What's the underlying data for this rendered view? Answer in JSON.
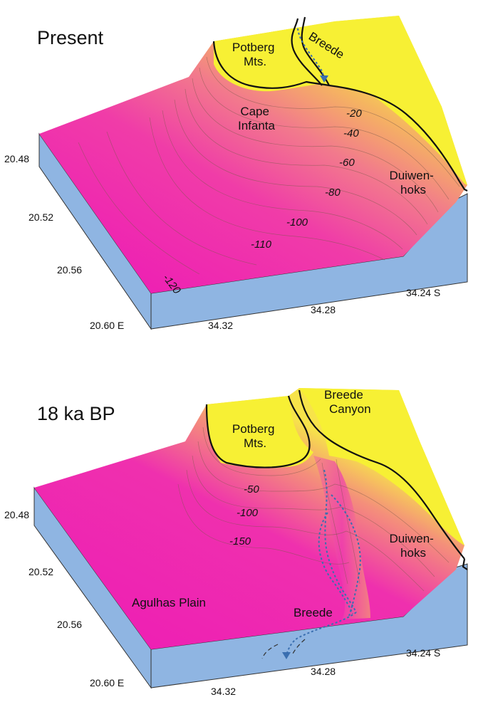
{
  "colors": {
    "land": "#f7f034",
    "deep": "#ee1fb4",
    "mid": "#f27a8c",
    "shallow": "#f5b560",
    "block_side": "#8fb5e2",
    "river": "#3a6fb0"
  },
  "panels": [
    {
      "title": "Present",
      "labels": {
        "mountains": "Potberg\nMts.",
        "river": "Breede",
        "cape": "Cape\nInfanta",
        "duiwenhoks": "Duiwen-\nhoks"
      },
      "contours": [
        "-20",
        "-40",
        "-60",
        "-80",
        "-100",
        "-110",
        "-120"
      ],
      "lat_ticks": [
        "34.32",
        "34.28",
        "34.24 S"
      ],
      "lon_ticks": [
        "20.48",
        "20.52",
        "20.56",
        "20.60 E"
      ]
    },
    {
      "title": "18 ka BP",
      "labels": {
        "mountains": "Potberg\nMts.",
        "canyon": "Breede\nCanyon",
        "duiwenhoks": "Duiwen-\nhoks",
        "plain": "Agulhas Plain",
        "river": "Breede"
      },
      "contours": [
        "-50",
        "-100",
        "-150"
      ],
      "lat_ticks": [
        "34.32",
        "34.28",
        "34.24 S"
      ],
      "lon_ticks": [
        "20.48",
        "20.52",
        "20.56",
        "20.60 E"
      ]
    }
  ]
}
